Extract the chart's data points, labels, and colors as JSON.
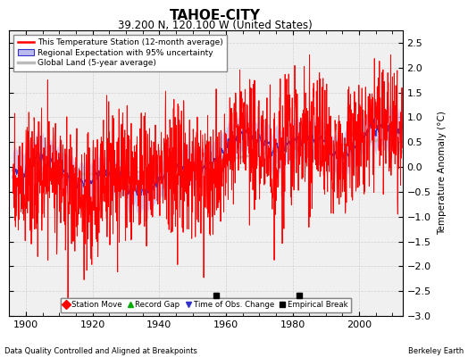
{
  "title": "TAHOE-CITY",
  "subtitle": "39.200 N, 120.100 W (United States)",
  "ylabel": "Temperature Anomaly (°C)",
  "footer_left": "Data Quality Controlled and Aligned at Breakpoints",
  "footer_right": "Berkeley Earth",
  "xlim": [
    1895,
    2013
  ],
  "ylim": [
    -3.0,
    2.75
  ],
  "yticks": [
    -3,
    -2.5,
    -2,
    -1.5,
    -1,
    -0.5,
    0,
    0.5,
    1,
    1.5,
    2,
    2.5
  ],
  "xticks": [
    1900,
    1920,
    1940,
    1960,
    1980,
    2000
  ],
  "empirical_breaks": [
    1957,
    1982
  ],
  "red_color": "#FF0000",
  "blue_color": "#3333CC",
  "blue_fill_color": "#BBBBEE",
  "gray_color": "#BBBBBB",
  "background_color": "#F0F0F0",
  "legend_station": "This Temperature Station (12-month average)",
  "legend_regional": "Regional Expectation with 95% uncertainty",
  "legend_global": "Global Land (5-year average)",
  "legend_station_move": "Station Move",
  "legend_record_gap": "Record Gap",
  "legend_time_obs": "Time of Obs. Change",
  "legend_empirical": "Empirical Break",
  "seed": 12345
}
